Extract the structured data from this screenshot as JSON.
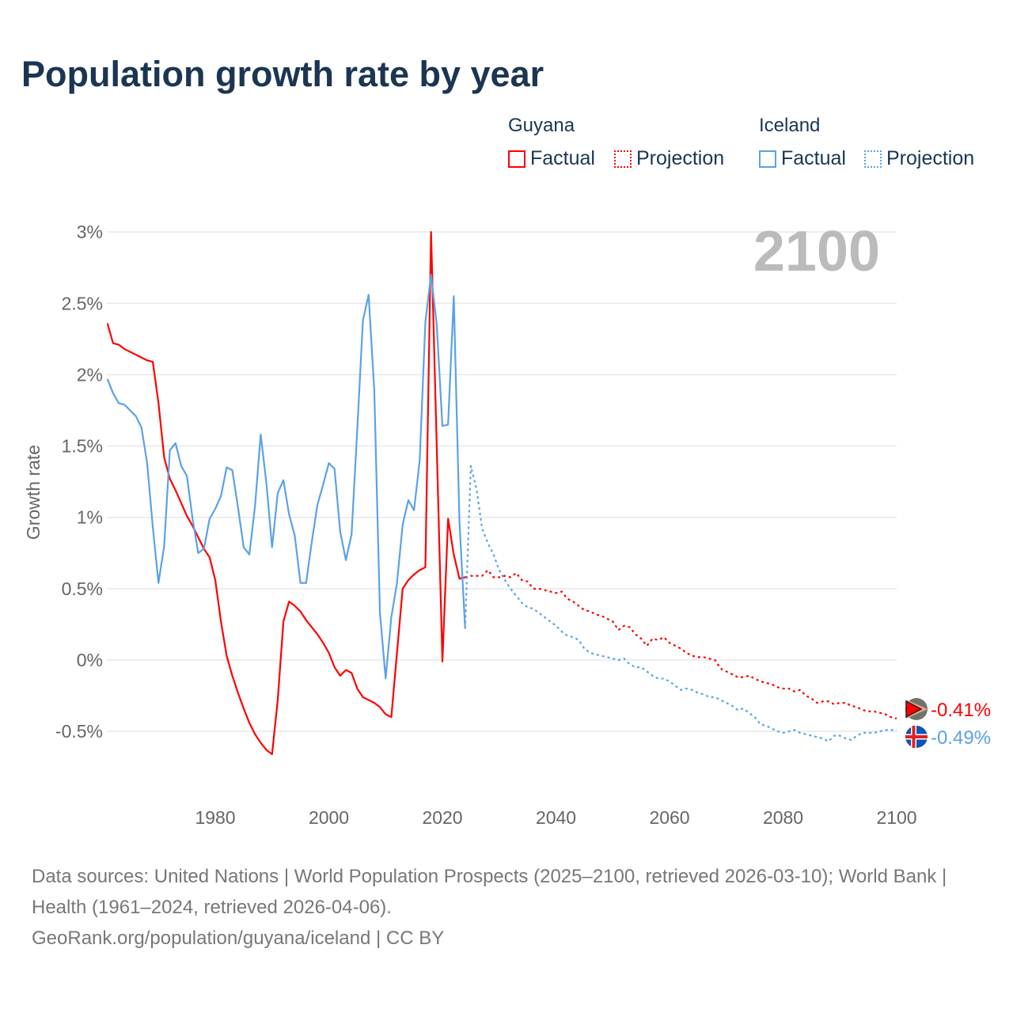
{
  "title": "Population growth rate by year",
  "legend": {
    "groups": [
      {
        "country": "Guyana",
        "color": "#ff0000",
        "factual": "Factual",
        "projection": "Projection"
      },
      {
        "country": "Iceland",
        "color": "#5aa2e8",
        "factual": "Factual",
        "projection": "Projection"
      }
    ]
  },
  "year_label": "2100",
  "footer": {
    "line1": "Data sources: United Nations | World Population Prospects (2025–2100, retrieved 2026-03-10); World Bank | Health (1961–2024, retrieved 2026-04-06).",
    "line2": "GeoRank.org/population/guyana/iceland | CC BY"
  },
  "chart_data": {
    "type": "line",
    "title": "Population growth rate by year",
    "xlabel": "",
    "ylabel": "Growth rate",
    "xlim": [
      1961,
      2100
    ],
    "ylim": [
      -0.7,
      3
    ],
    "x_ticks": [
      1980,
      2000,
      2020,
      2040,
      2060,
      2080,
      2100
    ],
    "y_ticks": [
      3,
      2.5,
      2,
      1.5,
      1,
      0.5,
      0,
      -0.5
    ],
    "y_tick_labels": [
      "3%",
      "2.5%",
      "2%",
      "1.5%",
      "1%",
      "0.5%",
      "0%",
      "-0.5%"
    ],
    "grid": true,
    "legend_position": "top-right",
    "series": [
      {
        "name": "Guyana",
        "kind": "factual",
        "color": "#ff0000",
        "start_year": 1961,
        "values": [
          2.36,
          2.22,
          2.21,
          2.18,
          2.16,
          2.14,
          2.12,
          2.1,
          2.09,
          1.8,
          1.42,
          1.27,
          1.19,
          1.1,
          1.01,
          0.94,
          0.86,
          0.78,
          0.72,
          0.56,
          0.27,
          0.03,
          -0.11,
          -0.23,
          -0.34,
          -0.44,
          -0.52,
          -0.58,
          -0.63,
          -0.66,
          -0.28,
          0.27,
          0.41,
          0.38,
          0.34,
          0.28,
          0.23,
          0.18,
          0.12,
          0.05,
          -0.05,
          -0.11,
          -0.07,
          -0.09,
          -0.2,
          -0.26,
          -0.28,
          -0.3,
          -0.33,
          -0.38,
          -0.4,
          0.05,
          0.5,
          0.56,
          0.6,
          0.63,
          0.65,
          3.0,
          1.5,
          -0.01,
          0.99,
          0.74,
          0.57,
          0.58
        ]
      },
      {
        "name": "Guyana",
        "kind": "projection",
        "color": "#ff0000",
        "start_year": 2025,
        "values": [
          0.59,
          0.59,
          0.59,
          0.63,
          0.58,
          0.58,
          0.59,
          0.58,
          0.61,
          0.56,
          0.55,
          0.5,
          0.5,
          0.49,
          0.48,
          0.47,
          0.48,
          0.43,
          0.41,
          0.38,
          0.35,
          0.34,
          0.32,
          0.31,
          0.29,
          0.27,
          0.21,
          0.24,
          0.23,
          0.18,
          0.15,
          0.1,
          0.15,
          0.14,
          0.16,
          0.12,
          0.1,
          0.08,
          0.05,
          0.03,
          0.02,
          0.02,
          0.01,
          0.0,
          -0.06,
          -0.08,
          -0.1,
          -0.12,
          -0.12,
          -0.11,
          -0.13,
          -0.15,
          -0.16,
          -0.17,
          -0.19,
          -0.2,
          -0.2,
          -0.22,
          -0.21,
          -0.25,
          -0.27,
          -0.3,
          -0.29,
          -0.29,
          -0.31,
          -0.3,
          -0.3,
          -0.32,
          -0.33,
          -0.35,
          -0.36,
          -0.36,
          -0.37,
          -0.38,
          -0.4,
          -0.41
        ]
      },
      {
        "name": "Iceland",
        "kind": "factual",
        "color": "#5aa2e8",
        "start_year": 1961,
        "values": [
          1.97,
          1.87,
          1.8,
          1.79,
          1.75,
          1.71,
          1.63,
          1.38,
          0.93,
          0.54,
          0.8,
          1.47,
          1.52,
          1.36,
          1.29,
          0.99,
          0.75,
          0.78,
          0.99,
          1.06,
          1.15,
          1.35,
          1.33,
          1.07,
          0.79,
          0.74,
          1.08,
          1.58,
          1.24,
          0.79,
          1.17,
          1.26,
          1.02,
          0.87,
          0.54,
          0.54,
          0.83,
          1.09,
          1.23,
          1.38,
          1.34,
          0.9,
          0.7,
          0.88,
          1.61,
          2.38,
          2.56,
          1.89,
          0.33,
          -0.13,
          0.3,
          0.54,
          0.95,
          1.12,
          1.05,
          1.4,
          2.37,
          2.7,
          2.35,
          1.64,
          1.65,
          2.55,
          0.97,
          0.22
        ]
      },
      {
        "name": "Iceland",
        "kind": "projection",
        "color": "#5aa2e8",
        "start_year": 2025,
        "values": [
          1.36,
          1.2,
          0.92,
          0.82,
          0.74,
          0.63,
          0.56,
          0.5,
          0.45,
          0.4,
          0.37,
          0.36,
          0.33,
          0.3,
          0.27,
          0.24,
          0.2,
          0.17,
          0.16,
          0.14,
          0.08,
          0.05,
          0.04,
          0.03,
          0.02,
          0.01,
          0.0,
          0.01,
          -0.03,
          -0.05,
          -0.05,
          -0.08,
          -0.11,
          -0.13,
          -0.13,
          -0.15,
          -0.18,
          -0.21,
          -0.2,
          -0.21,
          -0.23,
          -0.24,
          -0.26,
          -0.26,
          -0.28,
          -0.3,
          -0.32,
          -0.35,
          -0.34,
          -0.37,
          -0.4,
          -0.45,
          -0.46,
          -0.48,
          -0.5,
          -0.51,
          -0.5,
          -0.49,
          -0.51,
          -0.52,
          -0.53,
          -0.54,
          -0.55,
          -0.57,
          -0.53,
          -0.53,
          -0.55,
          -0.56,
          -0.53,
          -0.51,
          -0.51,
          -0.51,
          -0.5,
          -0.49,
          -0.49,
          -0.49
        ]
      }
    ],
    "end_labels": [
      {
        "country": "Guyana",
        "label": "-0.41%",
        "color": "#ff0000"
      },
      {
        "country": "Iceland",
        "label": "-0.49%",
        "color": "#5aa2e8"
      }
    ]
  }
}
